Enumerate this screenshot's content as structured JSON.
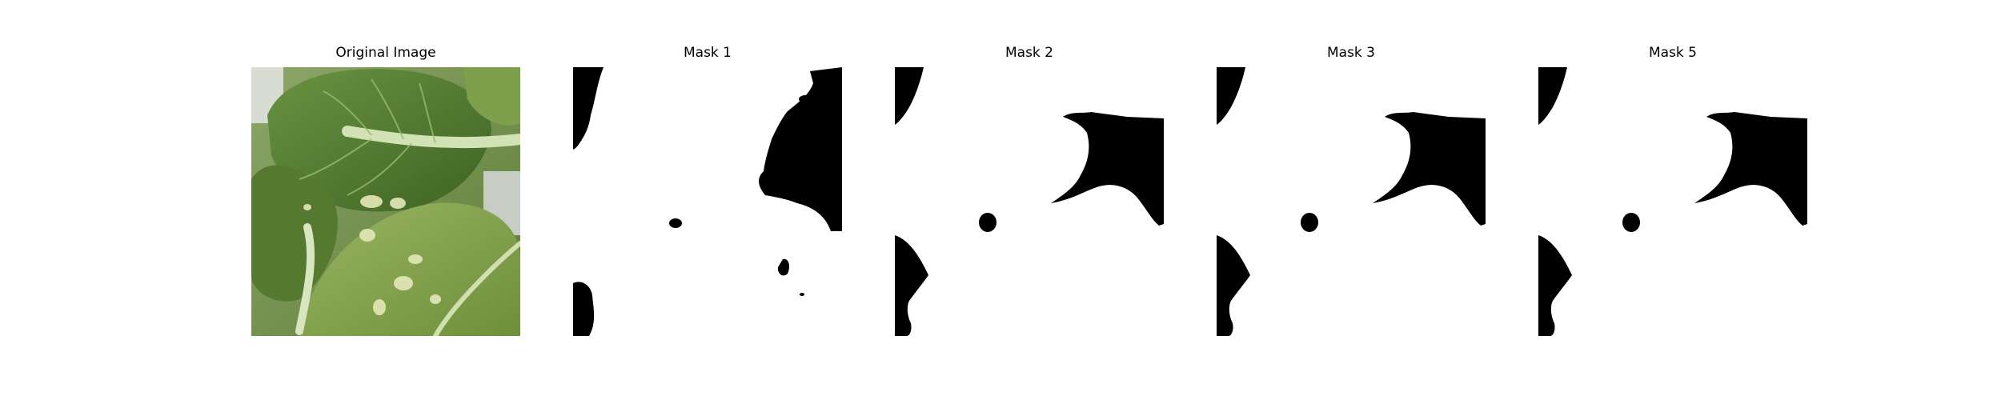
{
  "figure": {
    "panels": [
      {
        "title": "Original Image",
        "kind": "photo",
        "content": "green leaves with pale spots"
      },
      {
        "title": "Mask 1",
        "kind": "binary-mask"
      },
      {
        "title": "Mask 2",
        "kind": "binary-mask"
      },
      {
        "title": "Mask 3",
        "kind": "binary-mask"
      },
      {
        "title": "Mask 5",
        "kind": "binary-mask"
      }
    ],
    "colors": {
      "background": "#ffffff",
      "mask_foreground": "#000000",
      "mask_background": "#ffffff",
      "leaf_dark": "#4b6e2a",
      "leaf_mid": "#6e9440",
      "leaf_light": "#a9c27a",
      "stem": "#c9dba6"
    }
  }
}
